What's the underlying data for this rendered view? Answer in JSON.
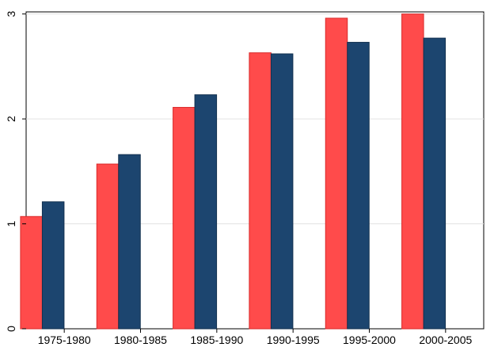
{
  "chart_data": {
    "type": "bar",
    "categories": [
      "1975-1980",
      "1980-1985",
      "1985-1990",
      "1990-1995",
      "1995-2000",
      "2000-2005"
    ],
    "series": [
      {
        "values": [
          1.07,
          1.57,
          2.11,
          2.63,
          2.96,
          3.0
        ],
        "color": "#ff4b4b"
      },
      {
        "values": [
          1.21,
          1.66,
          2.23,
          2.62,
          2.73,
          2.77
        ],
        "color": "#1c456f"
      }
    ],
    "yticks": [
      "0",
      "1",
      "2",
      "3"
    ],
    "ylim": [
      0,
      3.02
    ],
    "grid": true,
    "legend": "none"
  }
}
